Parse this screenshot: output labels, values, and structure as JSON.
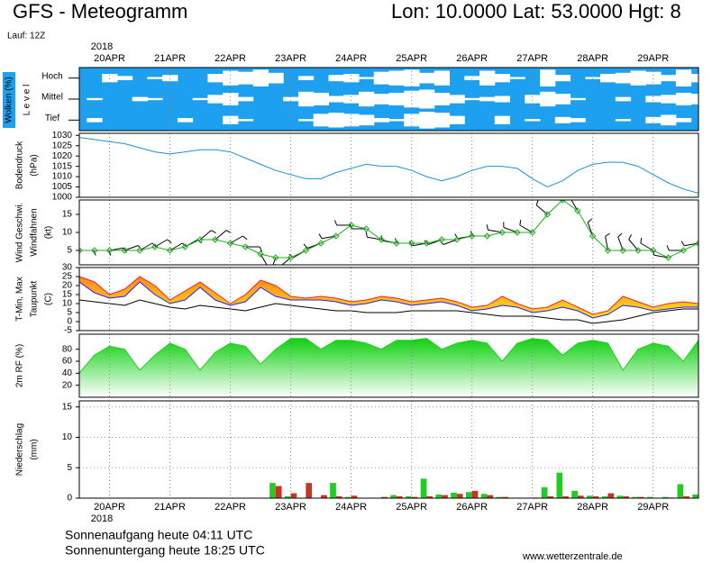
{
  "title": "GFS - Meteogramm",
  "location": "Lon: 10.0000 Lat: 53.0000 Hgt: 8",
  "run": "Lauf: 12Z",
  "year": "2018",
  "sunrise": "Sonnenaufgang heute 04:11 UTC",
  "sunset": "Sonnenuntergang heute 18:25 UTC",
  "source": "www.wetterzentrale.de",
  "chart_data": [
    {
      "type": "heatmap",
      "ylabel": "Wolken (%)",
      "ylabel2": "L e v e l",
      "categories": [
        null,
        null,
        "20APR",
        null,
        null,
        null,
        "21APR",
        null,
        null,
        null,
        "22APR",
        null,
        null,
        null,
        "23APR",
        null,
        null,
        null,
        "24APR",
        null,
        null,
        null,
        "25APR",
        null,
        null,
        null,
        "26APR",
        null,
        null,
        null,
        "27APR",
        null,
        null,
        null,
        "28APR",
        null,
        null,
        null,
        "29APR",
        null,
        null,
        null
      ],
      "ylim": [
        0,
        100
      ],
      "color": "#1ea0f0",
      "series": [
        {
          "name": "Hoch",
          "values": [
            100,
            100,
            60,
            80,
            100,
            90,
            70,
            100,
            100,
            60,
            30,
            40,
            20,
            50,
            100,
            80,
            100,
            70,
            60,
            90,
            40,
            30,
            20,
            50,
            30,
            100,
            80,
            30,
            60,
            90,
            100,
            20,
            70,
            100,
            90,
            60,
            50,
            30,
            40,
            70,
            20,
            60
          ]
        },
        {
          "name": "Mittel",
          "values": [
            100,
            90,
            100,
            100,
            80,
            90,
            100,
            100,
            90,
            60,
            40,
            80,
            100,
            100,
            80,
            30,
            40,
            70,
            60,
            30,
            50,
            40,
            20,
            10,
            40,
            60,
            90,
            80,
            70,
            100,
            60,
            30,
            50,
            90,
            100,
            100,
            80,
            100,
            70,
            60,
            40,
            50
          ]
        },
        {
          "name": "Tief",
          "values": [
            100,
            80,
            100,
            100,
            100,
            100,
            100,
            80,
            100,
            100,
            60,
            90,
            100,
            100,
            100,
            90,
            40,
            30,
            40,
            50,
            80,
            90,
            40,
            20,
            30,
            60,
            100,
            100,
            60,
            100,
            90,
            100,
            70,
            80,
            100,
            100,
            90,
            100,
            70,
            50,
            80,
            100
          ]
        }
      ]
    },
    {
      "type": "line",
      "ylabel": "Bodendruck",
      "yunit": "(hPa)",
      "color": "#1e90d0",
      "values": [
        1029,
        1028,
        1027,
        1026,
        1024,
        1022,
        1021,
        1022,
        1023,
        1023,
        1022,
        1019,
        1016,
        1013,
        1011,
        1009,
        1009,
        1012,
        1014,
        1016,
        1015,
        1015,
        1013,
        1010,
        1008,
        1010,
        1013,
        1015,
        1015,
        1014,
        1009,
        1005,
        1008,
        1013,
        1016,
        1017,
        1017,
        1015,
        1011,
        1007,
        1004,
        1002
      ],
      "ylim": [
        1000,
        1031
      ],
      "yticks": [
        1000,
        1005,
        1010,
        1015,
        1020,
        1025,
        1030
      ]
    },
    {
      "type": "line",
      "ylabel": "Wind Geschwi.",
      "label_color": "#22aa22",
      "ylabel2": "Windfahnen",
      "yunit": "(kt)",
      "markers": "diamond",
      "series": [
        {
          "name": "Wind Geschwi.",
          "color": "#22aa22",
          "values": [
            5,
            5,
            5,
            5,
            5,
            6,
            5,
            6,
            8,
            8,
            7,
            6,
            4,
            3,
            3,
            5,
            7,
            9,
            12,
            11,
            8,
            7,
            7,
            7,
            8,
            8,
            9,
            9,
            10,
            10,
            10,
            15,
            19,
            16,
            9,
            5,
            5,
            5,
            5,
            3,
            5,
            7
          ]
        }
      ],
      "directions": [
        90,
        90,
        80,
        70,
        60,
        60,
        60,
        60,
        50,
        50,
        60,
        90,
        150,
        200,
        230,
        240,
        250,
        260,
        270,
        270,
        280,
        280,
        270,
        260,
        250,
        250,
        260,
        270,
        280,
        290,
        300,
        310,
        320,
        330,
        340,
        350,
        340,
        320,
        300,
        280,
        270,
        260
      ],
      "ylim": [
        1,
        19
      ],
      "yticks": [
        5,
        10,
        15
      ]
    },
    {
      "type": "line",
      "ylabel": "T-Min, Max",
      "label_color": "#dd2222",
      "ylabel2": "Taupunkt",
      "yunit": "(C)",
      "fill_between": true,
      "series": [
        {
          "color": "#2020ff",
          "values": [
            22,
            16,
            13,
            14,
            22,
            15,
            10,
            12,
            19,
            12,
            9,
            11,
            19,
            14,
            12,
            12,
            12,
            11,
            9,
            10,
            12,
            11,
            9,
            10,
            11,
            9,
            6,
            7,
            9,
            8,
            5,
            6,
            8,
            6,
            2,
            4,
            9,
            8,
            6,
            7,
            8,
            8
          ]
        },
        {
          "color": "#ff2020",
          "values": [
            25,
            22,
            15,
            18,
            25,
            20,
            12,
            17,
            22,
            16,
            10,
            15,
            23,
            20,
            14,
            13,
            14,
            13,
            11,
            12,
            14,
            13,
            11,
            12,
            13,
            11,
            8,
            9,
            14,
            10,
            7,
            8,
            12,
            8,
            4,
            6,
            14,
            11,
            8,
            10,
            11,
            10
          ]
        },
        {
          "color": "#000000",
          "values": [
            12,
            11,
            10,
            9,
            12,
            10,
            8,
            7,
            9,
            8,
            7,
            6,
            8,
            10,
            9,
            8,
            7,
            6,
            6,
            5,
            5,
            5,
            6,
            6,
            6,
            6,
            5,
            4,
            3,
            3,
            3,
            2,
            1,
            1,
            -1,
            0,
            1,
            3,
            5,
            6,
            7,
            7
          ]
        }
      ],
      "ylim": [
        -5,
        30
      ],
      "yticks": [
        -5,
        0,
        5,
        10,
        15,
        20,
        25,
        30
      ]
    },
    {
      "type": "area",
      "ylabel": "2m RF (%)",
      "label_color": "#22aa22",
      "color": "#22cc22",
      "values": [
        40,
        70,
        85,
        80,
        45,
        70,
        90,
        80,
        45,
        75,
        90,
        85,
        55,
        80,
        98,
        98,
        80,
        95,
        95,
        90,
        80,
        95,
        95,
        98,
        80,
        90,
        95,
        90,
        60,
        90,
        98,
        95,
        70,
        90,
        95,
        90,
        45,
        80,
        90,
        85,
        60,
        95
      ],
      "ylim": [
        0,
        105
      ],
      "yticks": [
        20,
        40,
        60,
        80
      ]
    },
    {
      "type": "bar",
      "ylabel": "Niederschlag",
      "yunit": "(mm)",
      "grid": true,
      "categories": [
        null,
        null,
        "20APR",
        null,
        null,
        null,
        "21APR",
        null,
        null,
        null,
        "22APR",
        null,
        null,
        null,
        "23APR",
        null,
        null,
        null,
        "24APR",
        null,
        null,
        null,
        "25APR",
        null,
        null,
        null,
        "26APR",
        null,
        null,
        null,
        "27APR",
        null,
        null,
        null,
        "28APR",
        null,
        null,
        null,
        "29APR",
        null,
        null,
        null
      ],
      "series": [
        {
          "color": "#22cc22",
          "values": [
            0,
            0,
            0,
            0,
            0,
            0,
            0,
            0,
            0,
            0,
            0,
            0,
            0,
            2.5,
            0.3,
            0,
            0,
            2.5,
            0.2,
            0,
            0,
            0.5,
            0.3,
            3.2,
            0.6,
            0.9,
            1.0,
            0.7,
            0.2,
            0,
            0,
            1.8,
            4.2,
            1.2,
            0.4,
            0.3,
            0.4,
            0.2,
            0.2,
            0.2,
            2.3,
            0.6
          ]
        },
        {
          "color": "#cc3322",
          "values": [
            0,
            0,
            0,
            0,
            0,
            0,
            0,
            0,
            0,
            0,
            0,
            0,
            0,
            2.0,
            0.8,
            2.5,
            0.5,
            0.3,
            0.4,
            0,
            0.2,
            0.3,
            0.2,
            0.3,
            0.5,
            0.7,
            1.2,
            0.5,
            0.2,
            0,
            0.1,
            0.3,
            0.3,
            0.4,
            0.3,
            0.8,
            0.3,
            0.2,
            0,
            0.1,
            0.3,
            0.2
          ]
        }
      ],
      "ylim": [
        0,
        16
      ],
      "yticks": [
        0,
        5,
        10,
        15
      ]
    }
  ]
}
